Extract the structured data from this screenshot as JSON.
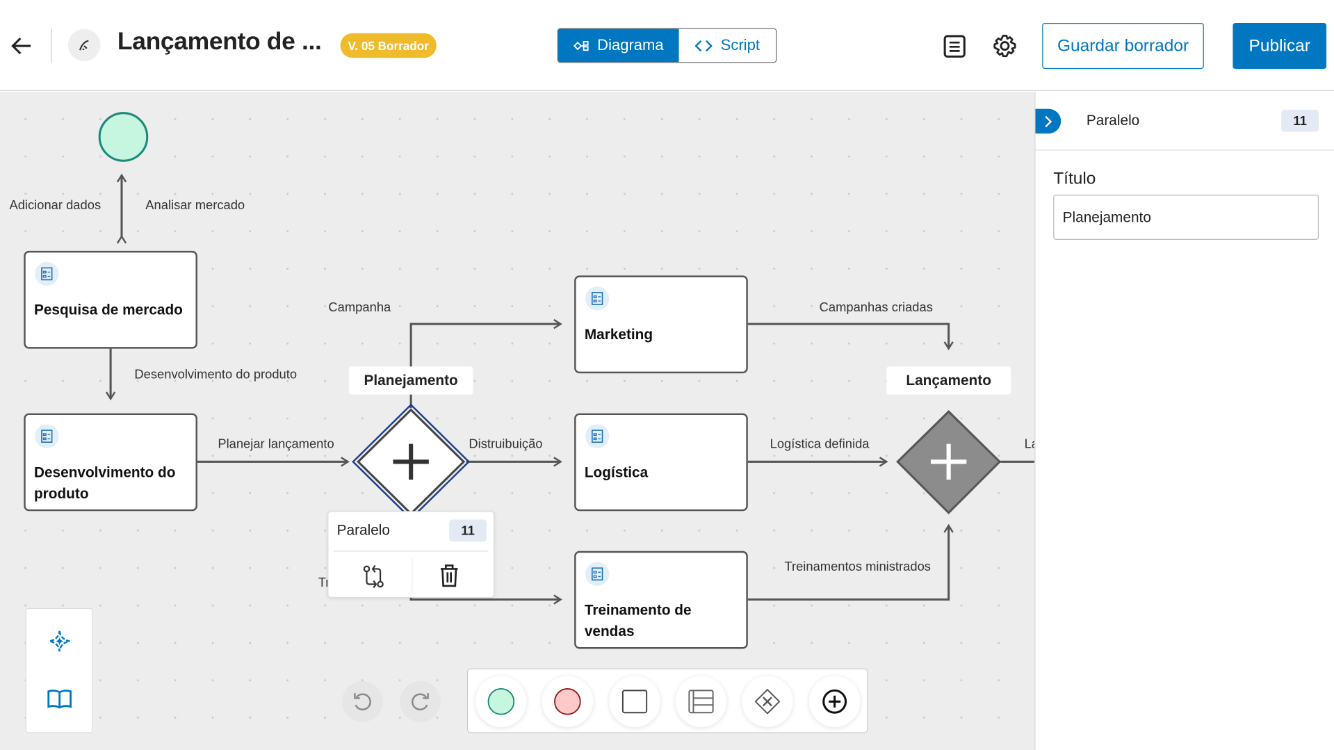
{
  "header": {
    "title": "Lançamento de ...",
    "version_badge": "V. 05 Borrador",
    "view_tabs": [
      {
        "label": "Diagrama",
        "active": true
      },
      {
        "label": "Script",
        "active": false
      }
    ],
    "save_draft": "Guardar borrador",
    "publish": "Publicar"
  },
  "colors": {
    "primary": "#0077c0",
    "badge": "#f0bb2b",
    "start_event": "#c6f6df",
    "end_event": "#ffc9c9"
  },
  "diagram": {
    "tasks": [
      {
        "label": "Pesquisa de mercado"
      },
      {
        "label": "Desenvolvimento do produto"
      },
      {
        "label": "Marketing"
      },
      {
        "label": "Logística"
      },
      {
        "label": "Treinamento de vendas"
      }
    ],
    "gateways": [
      {
        "label": "Planejamento",
        "type": "parallel",
        "selected": true
      },
      {
        "label": "Lançamento",
        "type": "parallel"
      }
    ],
    "edge_labels": [
      "Adicionar dados",
      "Analisar mercado",
      "Desenvolvimento do produto",
      "Planejar lançamento",
      "Campanha",
      "Distruibuição",
      "Tr",
      "Campanhas criadas",
      "Logística definida",
      "Treinamentos ministrados",
      "La"
    ]
  },
  "popup": {
    "type": "Paralelo",
    "count": "11"
  },
  "panel": {
    "type": "Paralelo",
    "count": "11",
    "title_label": "Título",
    "title_value": "Planejamento"
  }
}
